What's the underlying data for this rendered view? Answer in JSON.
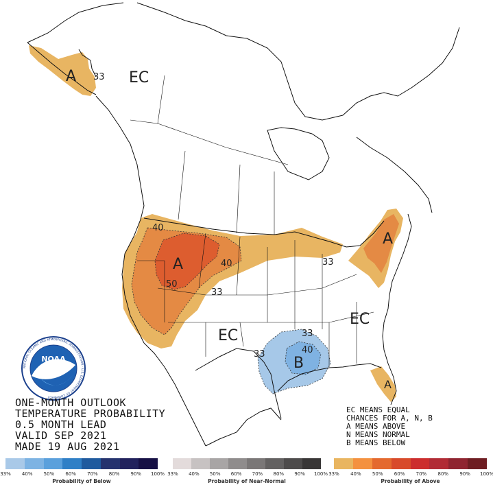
{
  "title_lines": [
    "ONE-MONTH OUTLOOK",
    "TEMPERATURE PROBABILITY",
    "0.5 MONTH LEAD",
    "VALID SEP 2021",
    "MADE 19 AUG 2021"
  ],
  "legend_lines": [
    "EC MEANS EQUAL",
    "CHANCES FOR A, N, B",
    "A MEANS ABOVE",
    "N MEANS NORMAL",
    "B MEANS BELOW"
  ],
  "map_labels": {
    "ec_alaska": "EC",
    "ec_southwest": "EC",
    "ec_southeast": "EC",
    "a_alaska": "A",
    "a_west": "A",
    "a_northeast": "A",
    "a_florida": "A",
    "b_gulf": "B"
  },
  "contour_labels": {
    "alaska_33": "33",
    "west_40": "40",
    "west_50": "50",
    "west_40b": "40",
    "west_33": "33",
    "greatlakes_33": "33",
    "gulf_33a": "33",
    "gulf_33b": "33",
    "gulf_40": "40"
  },
  "logo": {
    "text": "NOAA",
    "ring_text": "NATIONAL OCEANIC AND ATMOSPHERIC ADMINISTRATION · U.S. DEPARTMENT OF COMMERCE"
  },
  "colorbars": {
    "below": {
      "caption": "Probability of Below",
      "colors": [
        "#a9c9e8",
        "#7db3e3",
        "#5aa0dc",
        "#2f7fc6",
        "#1f5a9e",
        "#25336e",
        "#21215c",
        "#161045"
      ],
      "ticks": [
        "33%",
        "40%",
        "50%",
        "60%",
        "70%",
        "80%",
        "90%",
        "100%"
      ]
    },
    "normal": {
      "caption": "Probability of Near-Normal",
      "colors": [
        "#e3dbdb",
        "#c7c2c2",
        "#a8a5a5",
        "#8f8c8c",
        "#7a7777",
        "#636161",
        "#4d4b4b",
        "#383636"
      ],
      "ticks": [
        "33%",
        "40%",
        "50%",
        "60%",
        "70%",
        "80%",
        "90%",
        "100%"
      ]
    },
    "above": {
      "caption": "Probability of Above",
      "colors": [
        "#e9b560",
        "#f4913f",
        "#e4692e",
        "#d84a2a",
        "#cc2d2d",
        "#b12b35",
        "#8f2430",
        "#6e1d22"
      ],
      "ticks": [
        "33%",
        "40%",
        "50%",
        "60%",
        "70%",
        "80%",
        "90%",
        "100%"
      ]
    }
  },
  "colors": {
    "above_33": "#e8b562",
    "above_40": "#e48a44",
    "above_50": "#dd5d2f",
    "below_33": "#a6c8e8",
    "below_40": "#7fb2e2"
  }
}
